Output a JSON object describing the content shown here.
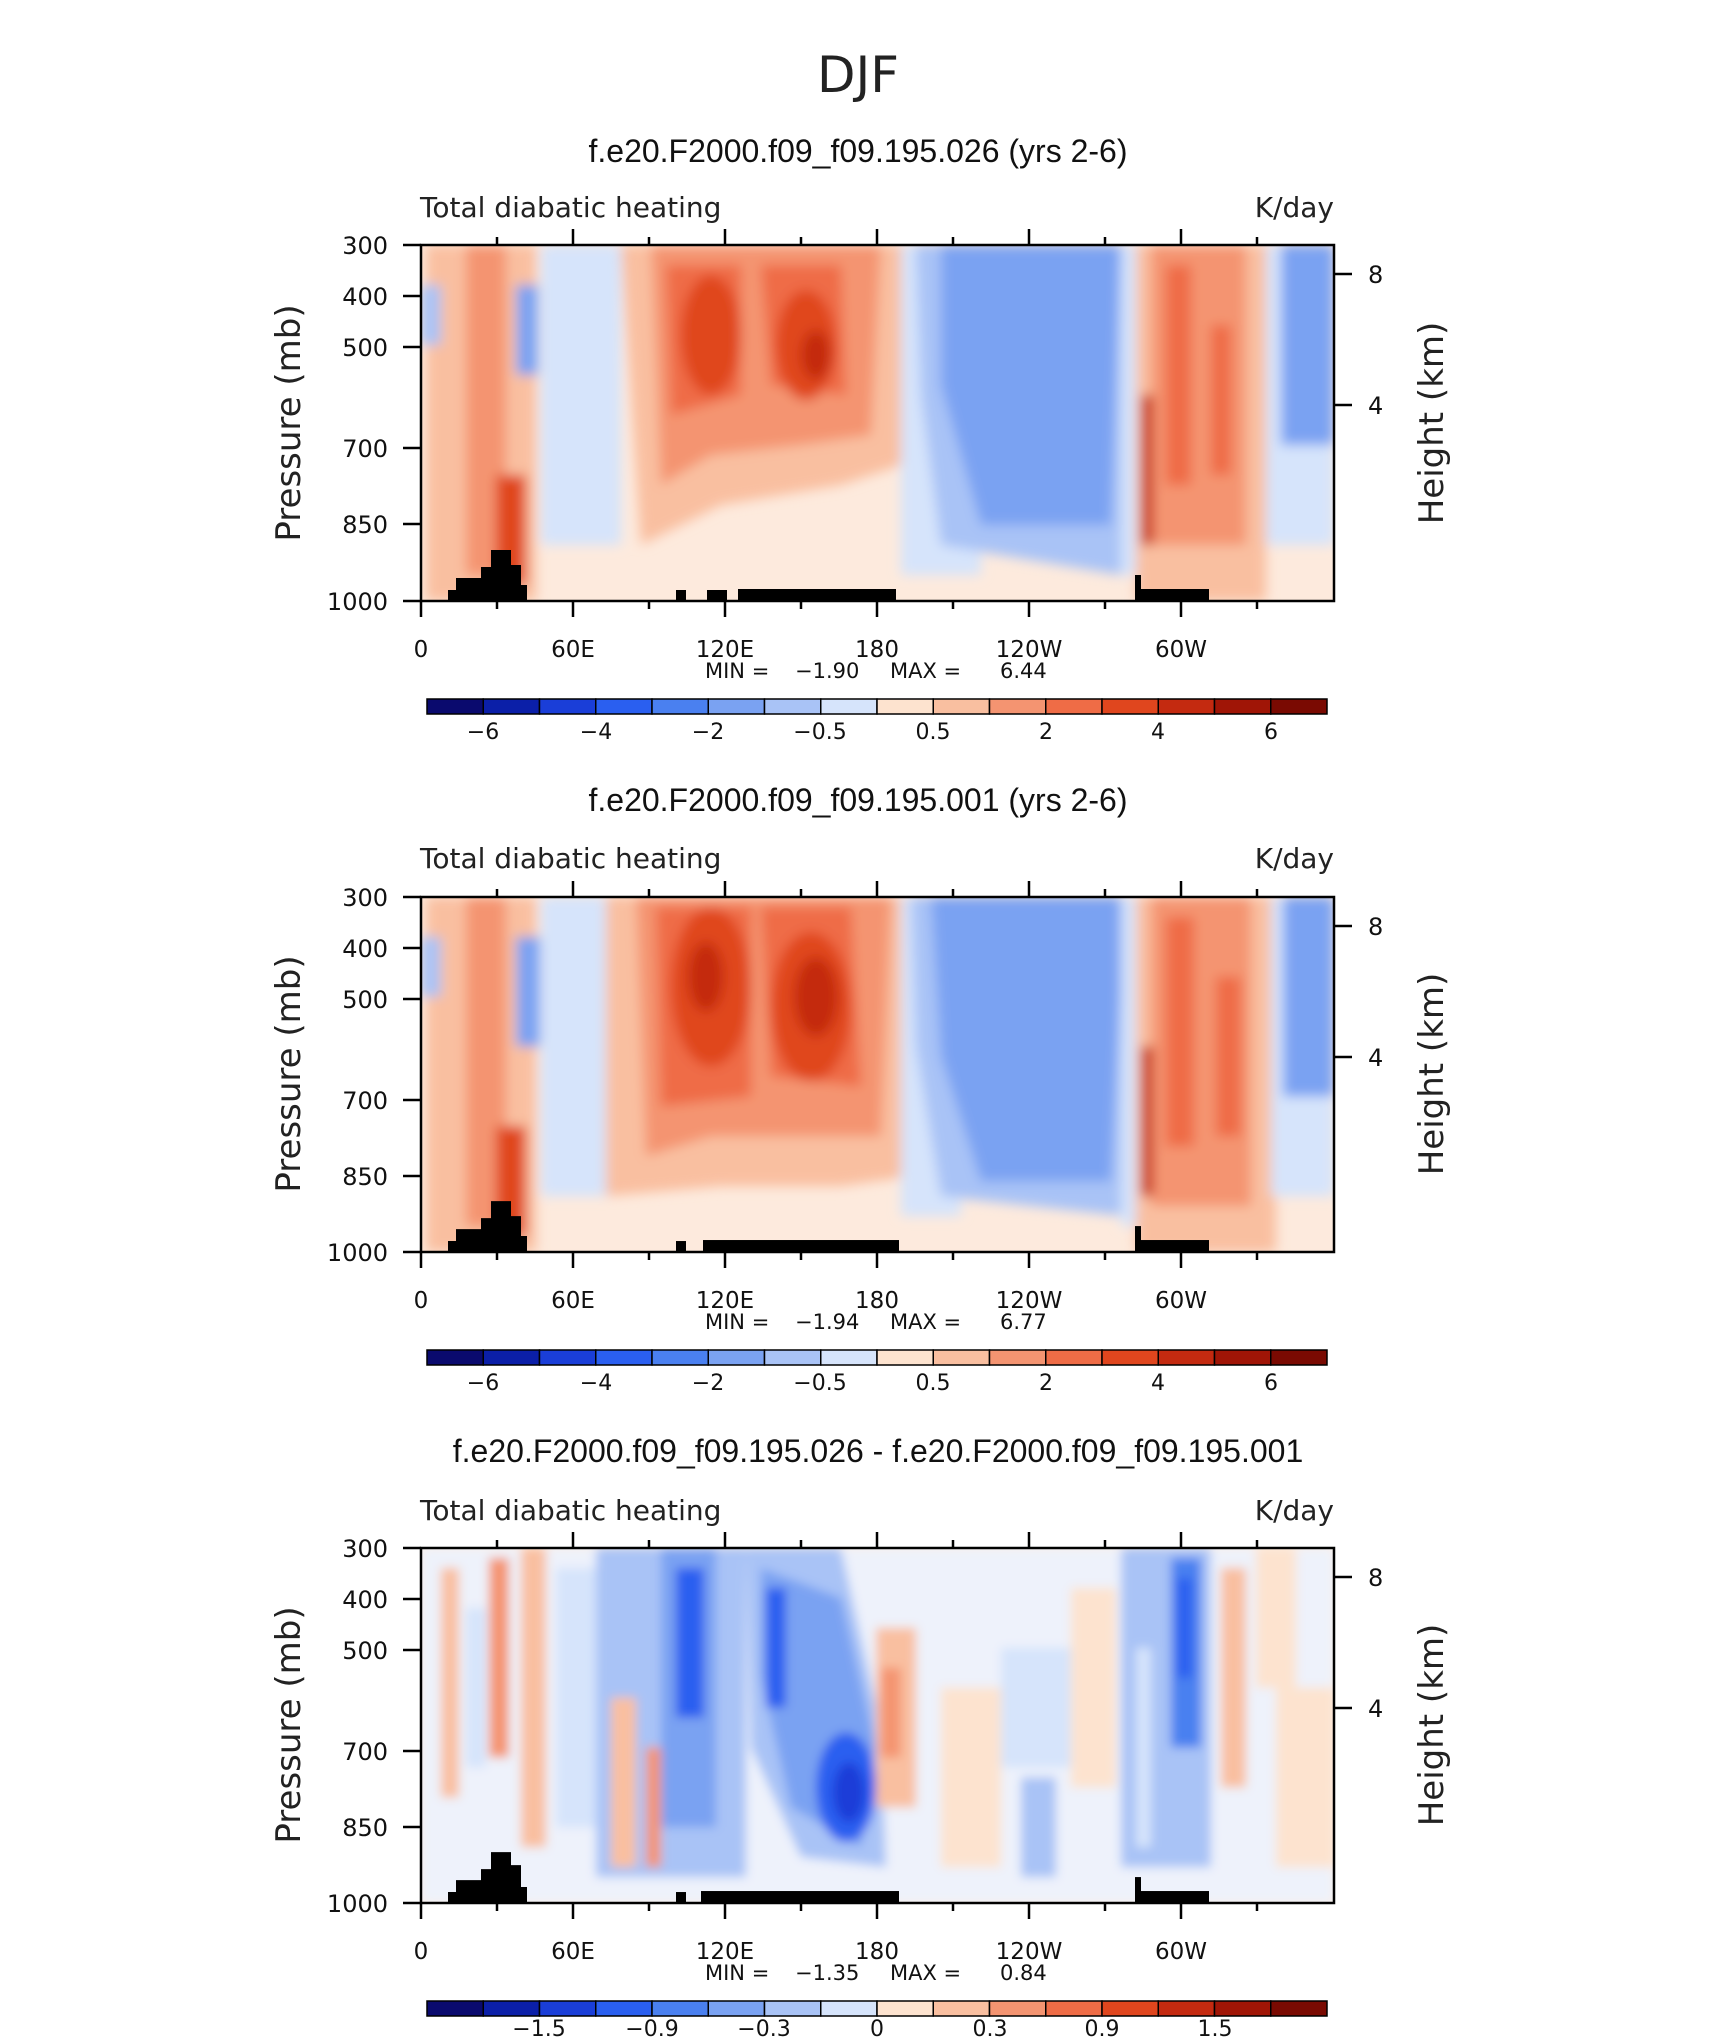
{
  "figure_title": "DJF",
  "chart_data": [
    {
      "type": "contour",
      "title": "f.e20.F2000.f09_f09.195.026 (yrs 2-6)",
      "left_label": "Total diabatic heating",
      "right_label": "K/day",
      "ylabel": "Pressure (mb)",
      "ylabel_right": "Height (km)",
      "y_ticks": [
        "300",
        "400",
        "500",
        "700",
        "850",
        "1000"
      ],
      "y_right_ticks": [
        "8",
        "4"
      ],
      "x_tick_labels": [
        "0",
        "60E",
        "120E",
        "180",
        "120W",
        "60W"
      ],
      "stats": {
        "min_label": "MIN =",
        "min": "−1.90",
        "max_label": "MAX =",
        "max": "6.44"
      },
      "colorbar_labels": [
        "−6",
        "−4",
        "−2",
        "−0.5",
        "0.5",
        "2",
        "4",
        "6"
      ]
    },
    {
      "type": "contour",
      "title": "f.e20.F2000.f09_f09.195.001 (yrs 2-6)",
      "left_label": "Total diabatic heating",
      "right_label": "K/day",
      "ylabel": "Pressure (mb)",
      "ylabel_right": "Height (km)",
      "y_ticks": [
        "300",
        "400",
        "500",
        "700",
        "850",
        "1000"
      ],
      "y_right_ticks": [
        "8",
        "4"
      ],
      "x_tick_labels": [
        "0",
        "60E",
        "120E",
        "180",
        "120W",
        "60W"
      ],
      "stats": {
        "min_label": "MIN =",
        "min": "−1.94",
        "max_label": "MAX =",
        "max": "6.77"
      },
      "colorbar_labels": [
        "−6",
        "−4",
        "−2",
        "−0.5",
        "0.5",
        "2",
        "4",
        "6"
      ]
    },
    {
      "type": "contour",
      "title": "f.e20.F2000.f09_f09.195.026 - f.e20.F2000.f09_f09.195.001",
      "left_label": "Total diabatic heating",
      "right_label": "K/day",
      "ylabel": "Pressure (mb)",
      "ylabel_right": "Height (km)",
      "y_ticks": [
        "300",
        "400",
        "500",
        "700",
        "850",
        "1000"
      ],
      "y_right_ticks": [
        "8",
        "4"
      ],
      "x_tick_labels": [
        "0",
        "60E",
        "120E",
        "180",
        "120W",
        "60W"
      ],
      "stats": {
        "min_label": "MIN =",
        "min": "−1.35",
        "max_label": "MAX =",
        "max": "0.84"
      },
      "colorbar_labels": [
        "−1.5",
        "−0.9",
        "−0.3",
        "0",
        "0.3",
        "0.9",
        "1.5"
      ]
    }
  ],
  "colors": {
    "colorbar": [
      "#0a0a6e",
      "#0b1fa8",
      "#1a3ed8",
      "#2a5ff0",
      "#4a80f0",
      "#7aa2f2",
      "#a9c3f6",
      "#d6e4fb",
      "#fde3cf",
      "#f9bfa0",
      "#f49471",
      "#ef6c46",
      "#e0461e",
      "#c42a10",
      "#a01506",
      "#7a0a02"
    ],
    "field": [
      "#1a3ed8",
      "#4a80f0",
      "#7aa2f2",
      "#a9c3f6",
      "#d6e4fb",
      "#ffffff",
      "#fde3cf",
      "#f9bfa0",
      "#f49471",
      "#ef6c46",
      "#e0461e",
      "#c42a10"
    ]
  }
}
